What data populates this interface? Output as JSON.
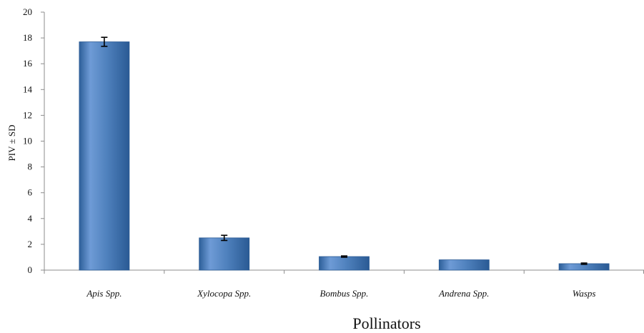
{
  "chart_data": {
    "type": "bar",
    "categories": [
      "Apis Spp.",
      "Xylocopa Spp.",
      "Bombus Spp.",
      "Andrena Spp.",
      "Wasps"
    ],
    "values": [
      17.7,
      2.5,
      1.05,
      0.8,
      0.5
    ],
    "errors": [
      0.35,
      0.2,
      0.05,
      0.0,
      0.05
    ],
    "xlabel": "Pollinators",
    "ylabel": "PIV ± SD",
    "ylim": [
      0,
      20
    ],
    "yticks": [
      0,
      2,
      4,
      6,
      8,
      10,
      12,
      14,
      16,
      18,
      20
    ],
    "grid": false,
    "legend": "none",
    "colors": {
      "bar_fill": "#4F81BD",
      "bar_light": "#7FA7DC",
      "bar_dark": "#2D5F99",
      "axis": "#8c8c8c",
      "error_bar": "#000000"
    }
  }
}
